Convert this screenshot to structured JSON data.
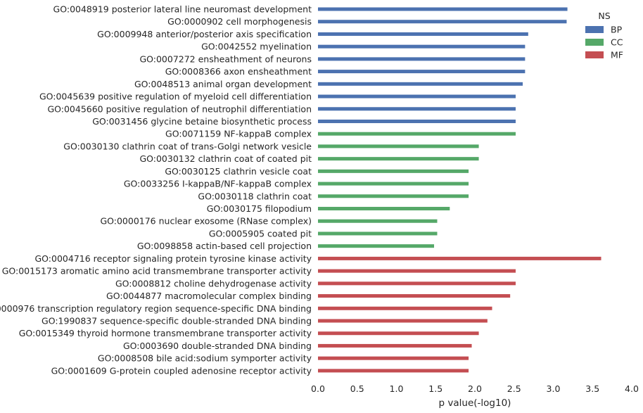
{
  "chart_data": {
    "type": "bar",
    "orientation": "horizontal",
    "xlabel": "p value(-log10)",
    "xlim": [
      0,
      4
    ],
    "xticks": [
      "0.0",
      "0.5",
      "1.0",
      "1.5",
      "2.0",
      "2.5",
      "3.0",
      "3.5",
      "4.0"
    ],
    "grid": false,
    "legend": {
      "title": "NS",
      "placement": "top-right",
      "entries": [
        {
          "name": "BP",
          "color": "#4c72b0"
        },
        {
          "name": "CC",
          "color": "#55a868"
        },
        {
          "name": "MF",
          "color": "#c44e52"
        }
      ]
    },
    "bars": [
      {
        "label": "GO:0048919 posterior lateral line neuromast development",
        "value": 3.18,
        "ns": "BP"
      },
      {
        "label": "GO:0000902 cell morphogenesis",
        "value": 3.17,
        "ns": "BP"
      },
      {
        "label": "GO:0009948 anterior/posterior axis specification",
        "value": 2.68,
        "ns": "BP"
      },
      {
        "label": "GO:0042552 myelination",
        "value": 2.64,
        "ns": "BP"
      },
      {
        "label": "GO:0007272 ensheathment of neurons",
        "value": 2.64,
        "ns": "BP"
      },
      {
        "label": "GO:0008366 axon ensheathment",
        "value": 2.64,
        "ns": "BP"
      },
      {
        "label": "GO:0048513 animal organ development",
        "value": 2.61,
        "ns": "BP"
      },
      {
        "label": "GO:0045639 positive regulation of myeloid cell differentiation",
        "value": 2.52,
        "ns": "BP"
      },
      {
        "label": "GO:0045660 positive regulation of neutrophil differentiation",
        "value": 2.52,
        "ns": "BP"
      },
      {
        "label": "GO:0031456 glycine betaine biosynthetic process",
        "value": 2.52,
        "ns": "BP"
      },
      {
        "label": "GO:0071159 NF-kappaB complex",
        "value": 2.52,
        "ns": "CC"
      },
      {
        "label": "GO:0030130 clathrin coat of trans-Golgi network vesicle",
        "value": 2.05,
        "ns": "CC"
      },
      {
        "label": "GO:0030132 clathrin coat of coated pit",
        "value": 2.05,
        "ns": "CC"
      },
      {
        "label": "GO:0030125 clathrin vesicle coat",
        "value": 1.92,
        "ns": "CC"
      },
      {
        "label": "GO:0033256 I-kappaB/NF-kappaB complex",
        "value": 1.92,
        "ns": "CC"
      },
      {
        "label": "GO:0030118 clathrin coat",
        "value": 1.92,
        "ns": "CC"
      },
      {
        "label": "GO:0030175 filopodium",
        "value": 1.68,
        "ns": "CC"
      },
      {
        "label": "GO:0000176 nuclear exosome (RNase complex)",
        "value": 1.52,
        "ns": "CC"
      },
      {
        "label": "GO:0005905 coated pit",
        "value": 1.52,
        "ns": "CC"
      },
      {
        "label": "GO:0098858 actin-based cell projection",
        "value": 1.48,
        "ns": "CC"
      },
      {
        "label": "GO:0004716 receptor signaling protein tyrosine kinase activity",
        "value": 3.61,
        "ns": "MF"
      },
      {
        "label": "GO:0015173 aromatic amino acid transmembrane transporter activity",
        "value": 2.52,
        "ns": "MF"
      },
      {
        "label": "GO:0008812 choline dehydrogenase activity",
        "value": 2.52,
        "ns": "MF"
      },
      {
        "label": "GO:0044877 macromolecular complex binding",
        "value": 2.45,
        "ns": "MF"
      },
      {
        "label": "GO:0000976 transcription regulatory region sequence-specific DNA binding",
        "value": 2.22,
        "ns": "MF"
      },
      {
        "label": "GO:1990837 sequence-specific double-stranded DNA binding",
        "value": 2.16,
        "ns": "MF"
      },
      {
        "label": "GO:0015349 thyroid hormone transmembrane transporter activity",
        "value": 2.05,
        "ns": "MF"
      },
      {
        "label": "GO:0003690 double-stranded DNA binding",
        "value": 1.96,
        "ns": "MF"
      },
      {
        "label": "GO:0008508 bile acid:sodium symporter activity",
        "value": 1.92,
        "ns": "MF"
      },
      {
        "label": "GO:0001609 G-protein coupled adenosine receptor activity",
        "value": 1.92,
        "ns": "MF"
      }
    ]
  }
}
